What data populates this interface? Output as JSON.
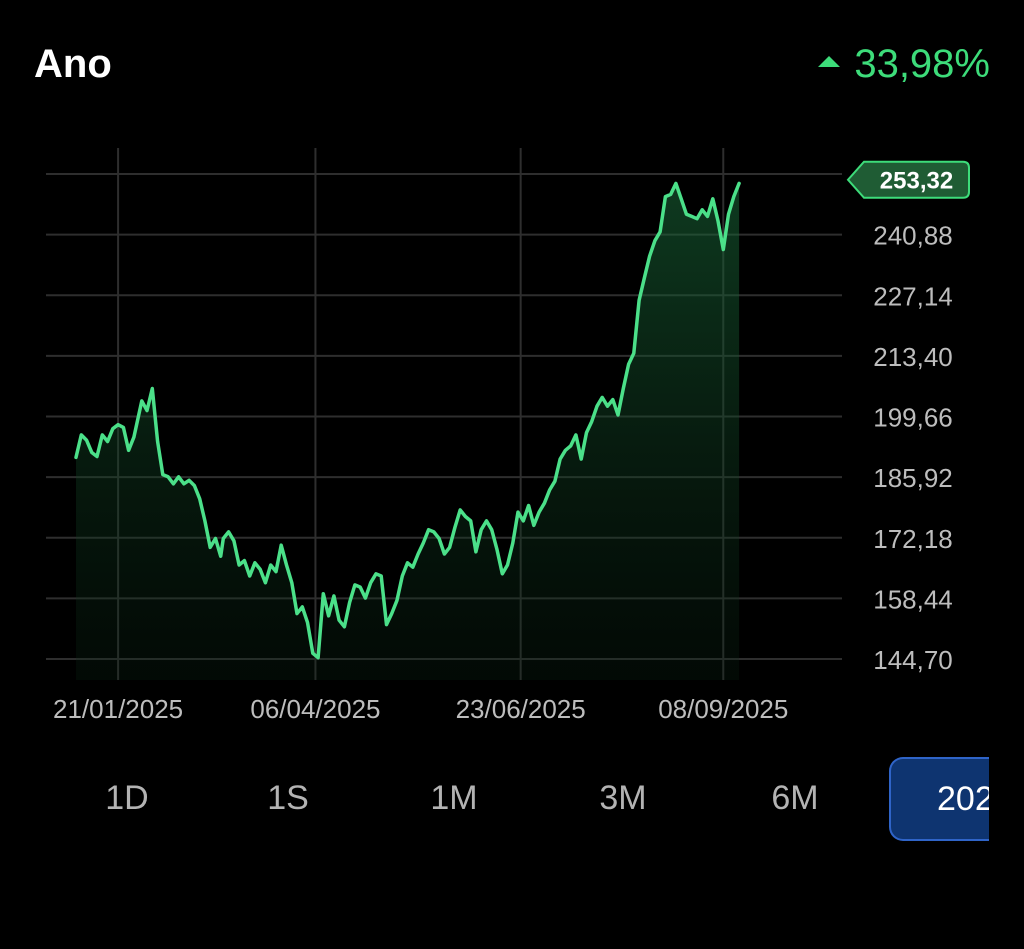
{
  "header": {
    "title": "Ano",
    "change": "33,98%"
  },
  "colors": {
    "line": "#4be089",
    "positive": "#3ddc7a",
    "active_tab_bg": "#0e3470",
    "active_tab_border": "#2f64c8"
  },
  "ranges": [
    {
      "label": "1D",
      "active": false
    },
    {
      "label": "1S",
      "active": false
    },
    {
      "label": "1M",
      "active": false
    },
    {
      "label": "3M",
      "active": false
    },
    {
      "label": "6M",
      "active": false
    },
    {
      "label": "202",
      "active": true
    }
  ],
  "chart_data": {
    "type": "area",
    "y_ticks": [
      "144,70",
      "158,44",
      "172,18",
      "185,92",
      "199,66",
      "213,40",
      "227,14",
      "240,88"
    ],
    "y_tick_values": [
      144.7,
      158.44,
      172.18,
      185.92,
      199.66,
      213.4,
      227.14,
      240.88
    ],
    "ylim": [
      144.7,
      254.62
    ],
    "x_ticks": [
      "21/01/2025",
      "06/04/2025",
      "23/06/2025",
      "08/09/2025"
    ],
    "x_tick_values": [
      "2025-01-21",
      "2025-04-06",
      "2025-06-23",
      "2025-09-08"
    ],
    "xlim": [
      "2025-01-05",
      "2025-10-14"
    ],
    "last_value_label": "253,32",
    "last_value": 253.32,
    "grid": true,
    "series": [
      {
        "points": [
          [
            "2025-01-05",
            190.4
          ],
          [
            "2025-01-07",
            195.5
          ],
          [
            "2025-01-09",
            194.3
          ],
          [
            "2025-01-11",
            191.5
          ],
          [
            "2025-01-13",
            190.6
          ],
          [
            "2025-01-15",
            195.5
          ],
          [
            "2025-01-17",
            194.0
          ],
          [
            "2025-01-19",
            196.9
          ],
          [
            "2025-01-21",
            197.8
          ],
          [
            "2025-01-23",
            197.2
          ],
          [
            "2025-01-25",
            192.0
          ],
          [
            "2025-01-27",
            195.0
          ],
          [
            "2025-01-30",
            203.2
          ],
          [
            "2025-02-01",
            201.0
          ],
          [
            "2025-02-03",
            206.0
          ],
          [
            "2025-02-05",
            194.0
          ],
          [
            "2025-02-07",
            186.5
          ],
          [
            "2025-02-09",
            186.0
          ],
          [
            "2025-02-11",
            184.4
          ],
          [
            "2025-02-13",
            186.0
          ],
          [
            "2025-02-15",
            184.4
          ],
          [
            "2025-02-17",
            185.2
          ],
          [
            "2025-02-19",
            184.0
          ],
          [
            "2025-02-21",
            181.0
          ],
          [
            "2025-02-23",
            176.0
          ],
          [
            "2025-02-25",
            170.0
          ],
          [
            "2025-02-27",
            172.0
          ],
          [
            "2025-02-29",
            168.0
          ],
          [
            "2025-03-02",
            172.0
          ],
          [
            "2025-03-04",
            173.5
          ],
          [
            "2025-03-06",
            171.5
          ],
          [
            "2025-03-08",
            166.0
          ],
          [
            "2025-03-10",
            167.0
          ],
          [
            "2025-03-12",
            163.5
          ],
          [
            "2025-03-14",
            166.5
          ],
          [
            "2025-03-16",
            165.0
          ],
          [
            "2025-03-18",
            162.0
          ],
          [
            "2025-03-20",
            166.0
          ],
          [
            "2025-03-22",
            164.5
          ],
          [
            "2025-03-24",
            170.5
          ],
          [
            "2025-03-26",
            166.0
          ],
          [
            "2025-03-28",
            162.0
          ],
          [
            "2025-03-30",
            155.0
          ],
          [
            "2025-04-01",
            156.5
          ],
          [
            "2025-04-03",
            153.0
          ],
          [
            "2025-04-05",
            146.0
          ],
          [
            "2025-04-07",
            145.0
          ],
          [
            "2025-04-09",
            159.5
          ],
          [
            "2025-04-11",
            154.5
          ],
          [
            "2025-04-13",
            159.0
          ],
          [
            "2025-04-15",
            153.5
          ],
          [
            "2025-04-17",
            152.0
          ],
          [
            "2025-04-19",
            157.5
          ],
          [
            "2025-04-21",
            161.5
          ],
          [
            "2025-04-23",
            161.0
          ],
          [
            "2025-04-25",
            158.5
          ],
          [
            "2025-04-27",
            162.0
          ],
          [
            "2025-04-29",
            164.0
          ],
          [
            "2025-05-01",
            163.5
          ],
          [
            "2025-05-03",
            152.5
          ],
          [
            "2025-05-05",
            155.0
          ],
          [
            "2025-05-07",
            158.0
          ],
          [
            "2025-05-09",
            163.5
          ],
          [
            "2025-05-11",
            166.5
          ],
          [
            "2025-05-13",
            165.5
          ],
          [
            "2025-05-15",
            168.5
          ],
          [
            "2025-05-17",
            171.0
          ],
          [
            "2025-05-19",
            174.0
          ],
          [
            "2025-05-21",
            173.5
          ],
          [
            "2025-05-23",
            172.0
          ],
          [
            "2025-05-25",
            168.5
          ],
          [
            "2025-05-27",
            170.0
          ],
          [
            "2025-05-29",
            174.5
          ],
          [
            "2025-05-31",
            178.5
          ],
          [
            "2025-06-02",
            177.0
          ],
          [
            "2025-06-04",
            176.0
          ],
          [
            "2025-06-06",
            169.0
          ],
          [
            "2025-06-08",
            174.0
          ],
          [
            "2025-06-10",
            176.0
          ],
          [
            "2025-06-12",
            174.0
          ],
          [
            "2025-06-14",
            169.5
          ],
          [
            "2025-06-16",
            164.0
          ],
          [
            "2025-06-18",
            166.0
          ],
          [
            "2025-06-20",
            171.0
          ],
          [
            "2025-06-22",
            178.0
          ],
          [
            "2025-06-24",
            176.0
          ],
          [
            "2025-06-26",
            179.5
          ],
          [
            "2025-06-28",
            175.0
          ],
          [
            "2025-06-30",
            178.0
          ],
          [
            "2025-07-02",
            180.0
          ],
          [
            "2025-07-04",
            183.0
          ],
          [
            "2025-07-06",
            185.0
          ],
          [
            "2025-07-08",
            190.0
          ],
          [
            "2025-07-10",
            192.0
          ],
          [
            "2025-07-12",
            193.0
          ],
          [
            "2025-07-14",
            195.5
          ],
          [
            "2025-07-16",
            190.0
          ],
          [
            "2025-07-18",
            196.0
          ],
          [
            "2025-07-20",
            198.5
          ],
          [
            "2025-07-22",
            202.0
          ],
          [
            "2025-07-24",
            204.0
          ],
          [
            "2025-07-26",
            202.0
          ],
          [
            "2025-07-28",
            203.5
          ],
          [
            "2025-07-30",
            200.0
          ],
          [
            "2025-08-01",
            206.0
          ],
          [
            "2025-08-03",
            211.5
          ],
          [
            "2025-08-05",
            214.0
          ],
          [
            "2025-08-07",
            226.0
          ],
          [
            "2025-08-09",
            231.0
          ],
          [
            "2025-08-11",
            236.0
          ],
          [
            "2025-08-13",
            239.5
          ],
          [
            "2025-08-15",
            241.5
          ],
          [
            "2025-08-17",
            249.5
          ],
          [
            "2025-08-19",
            250.0
          ],
          [
            "2025-08-21",
            252.5
          ],
          [
            "2025-08-23",
            249.0
          ],
          [
            "2025-08-25",
            245.5
          ],
          [
            "2025-08-27",
            245.0
          ],
          [
            "2025-08-29",
            244.5
          ],
          [
            "2025-08-31",
            246.5
          ],
          [
            "2025-09-02",
            245.0
          ],
          [
            "2025-09-04",
            249.0
          ],
          [
            "2025-09-06",
            244.0
          ],
          [
            "2025-09-08",
            237.5
          ],
          [
            "2025-09-10",
            245.5
          ],
          [
            "2025-09-12",
            249.5
          ],
          [
            "2025-09-14",
            252.5
          ]
        ]
      }
    ]
  }
}
